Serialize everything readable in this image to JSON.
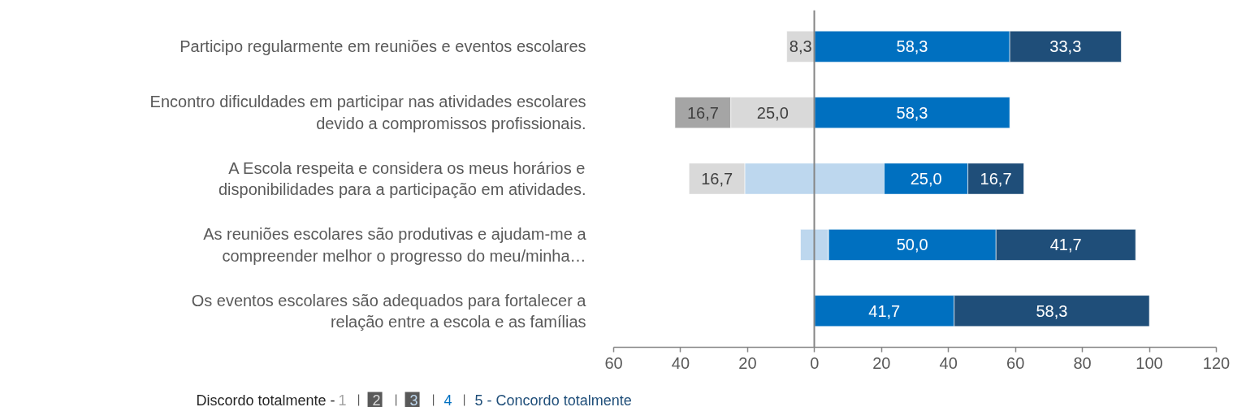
{
  "chart_data": {
    "type": "bar",
    "orientation": "horizontal",
    "categories": [
      "Participo regularmente em reuniões e eventos escolares",
      "Encontro dificuldades em participar nas atividades escolares devido a compromissos profissionais.",
      "A Escola respeita e considera os meus horários e disponibilidades para a participação em atividades.",
      "As reuniões escolares são produtivas e ajudam-me a compreender melhor o progresso do meu/minha…",
      "Os eventos escolares são adequados para fortalecer a relação entre a escola e as famílias"
    ],
    "series": [
      {
        "name": "1",
        "color": "#a5a5a5",
        "values": [
          null,
          16.7,
          null,
          null,
          null
        ],
        "base": [
          null,
          -41.7,
          null,
          null,
          null
        ],
        "value_labels": [
          null,
          "16,7",
          null,
          null,
          null
        ]
      },
      {
        "name": "2",
        "color": "#d9d9d9",
        "values": [
          8.3,
          25.0,
          16.7,
          null,
          null
        ],
        "base": [
          -8.3,
          -25.0,
          -37.5,
          null,
          null
        ],
        "value_labels": [
          "8,3",
          "25,0",
          "16,7",
          null,
          null
        ]
      },
      {
        "name": "3",
        "color": "#bdd7ee",
        "values": [
          null,
          null,
          41.7,
          8.3,
          null
        ],
        "base": [
          null,
          null,
          -20.8,
          -4.2,
          null
        ]
      },
      {
        "name": "4",
        "color": "#0070c0",
        "values": [
          58.3,
          58.3,
          25.0,
          50.0,
          41.7
        ],
        "base": [
          0,
          0,
          20.8,
          4.2,
          0
        ],
        "value_labels": [
          "58,3",
          "58,3",
          "25,0",
          "50,0",
          "41,7"
        ]
      },
      {
        "name": "5 - Concordo totalmente",
        "color": "#1f4e79",
        "values": [
          33.3,
          null,
          16.7,
          41.7,
          58.3
        ],
        "base": [
          58.3,
          null,
          45.8,
          54.2,
          41.7
        ],
        "value_labels": [
          "33,3",
          null,
          "16,7",
          "41,7",
          "58,3"
        ]
      }
    ],
    "xlim": [
      -60,
      120
    ],
    "xticks": [
      {
        "value": -60,
        "label": "60"
      },
      {
        "value": -40,
        "label": "40"
      },
      {
        "value": -20,
        "label": "20"
      },
      0,
      20,
      40,
      60,
      80,
      100,
      120
    ],
    "legend": "bottom",
    "legend_title": "Discordo totalmente -"
  }
}
